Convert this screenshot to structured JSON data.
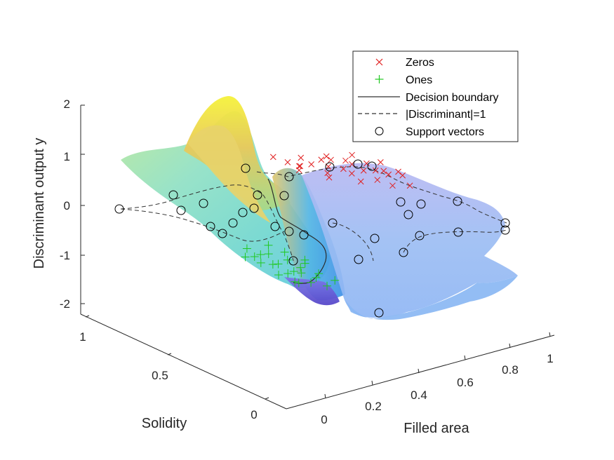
{
  "chart_data": {
    "type": "surface3d",
    "xlabel": "Filled area",
    "ylabel": "Solidity",
    "zlabel": "Discriminant output y",
    "xticks": [
      "0",
      "0.2",
      "0.4",
      "0.6",
      "0.8",
      "1"
    ],
    "yticks": [
      "0",
      "0.5",
      "1"
    ],
    "zticks": [
      "-2",
      "-1",
      "0",
      "1",
      "2"
    ],
    "xlim": [
      0,
      1
    ],
    "ylim": [
      0,
      1
    ],
    "zlim": [
      -2,
      2
    ],
    "grid": false,
    "legend_position": "top-right",
    "legend": [
      {
        "label": "Zeros",
        "marker": "x",
        "color": "#e02020"
      },
      {
        "label": "Ones",
        "marker": "+",
        "color": "#20c820"
      },
      {
        "label": "Decision boundary",
        "marker": "solid-line",
        "color": "#333333"
      },
      {
        "label": "|Discriminant|=1",
        "marker": "dashed-line",
        "color": "#333333"
      },
      {
        "label": "Support vectors",
        "marker": "circle",
        "color": "#000000"
      }
    ],
    "surface": {
      "description_values": {
        "z_min": -2.1,
        "z_max": 2.0
      },
      "colormap": [
        "#5b4fd6",
        "#4aa3ec",
        "#7fc3f0",
        "#9adcc6",
        "#d8e07a",
        "#f4ee3c"
      ]
    },
    "series": [
      {
        "name": "Zeros",
        "points": [
          [
            0.78,
            0.8,
            0.15
          ],
          [
            0.82,
            0.75,
            0.1
          ],
          [
            0.75,
            0.7,
            0.2
          ],
          [
            0.7,
            0.85,
            0.05
          ],
          [
            0.85,
            0.82,
            0.0
          ],
          [
            0.9,
            0.7,
            -0.05
          ],
          [
            0.65,
            0.78,
            0.25
          ],
          [
            0.72,
            0.62,
            0.3
          ],
          [
            0.8,
            0.6,
            0.1
          ],
          [
            0.88,
            0.65,
            0.0
          ],
          [
            0.95,
            0.78,
            -0.1
          ],
          [
            0.6,
            0.72,
            0.35
          ],
          [
            0.68,
            0.88,
            0.1
          ],
          [
            0.76,
            0.92,
            0.0
          ],
          [
            0.84,
            0.9,
            -0.05
          ],
          [
            0.92,
            0.88,
            -0.1
          ],
          [
            0.7,
            0.55,
            0.3
          ],
          [
            0.78,
            0.5,
            0.2
          ],
          [
            0.86,
            0.52,
            0.05
          ],
          [
            0.62,
            0.6,
            0.4
          ],
          [
            0.58,
            0.82,
            0.45
          ],
          [
            0.74,
            0.76,
            0.15
          ],
          [
            0.81,
            0.68,
            0.12
          ],
          [
            0.66,
            0.66,
            0.32
          ],
          [
            0.89,
            0.77,
            -0.02
          ],
          [
            0.94,
            0.66,
            -0.12
          ],
          [
            0.97,
            0.72,
            -0.2
          ],
          [
            0.73,
            0.83,
            0.08
          ],
          [
            0.79,
            0.86,
            0.03
          ],
          [
            0.87,
            0.7,
            0.0
          ]
        ],
        "color": "#e02020"
      },
      {
        "name": "Ones",
        "points": [
          [
            0.18,
            0.3,
            -0.1
          ],
          [
            0.22,
            0.25,
            -0.2
          ],
          [
            0.15,
            0.35,
            0.0
          ],
          [
            0.25,
            0.32,
            -0.15
          ],
          [
            0.2,
            0.2,
            -0.3
          ],
          [
            0.28,
            0.22,
            -0.35
          ],
          [
            0.12,
            0.28,
            0.05
          ],
          [
            0.24,
            0.4,
            0.0
          ],
          [
            0.3,
            0.3,
            -0.25
          ],
          [
            0.17,
            0.18,
            -0.2
          ],
          [
            0.21,
            0.36,
            -0.05
          ],
          [
            0.26,
            0.27,
            -0.22
          ],
          [
            0.19,
            0.24,
            -0.18
          ],
          [
            0.14,
            0.22,
            -0.1
          ],
          [
            0.23,
            0.18,
            -0.3
          ],
          [
            0.32,
            0.26,
            -0.4
          ],
          [
            0.1,
            0.33,
            0.1
          ],
          [
            0.27,
            0.36,
            -0.1
          ],
          [
            0.16,
            0.4,
            0.05
          ],
          [
            0.29,
            0.18,
            -0.45
          ],
          [
            0.35,
            0.22,
            -0.5
          ],
          [
            0.33,
            0.34,
            -0.3
          ],
          [
            0.2,
            0.3,
            -0.12
          ],
          [
            0.24,
            0.24,
            -0.24
          ],
          [
            0.18,
            0.36,
            -0.02
          ]
        ],
        "color": "#20c820"
      },
      {
        "name": "Support vectors",
        "count": 33
      }
    ]
  }
}
